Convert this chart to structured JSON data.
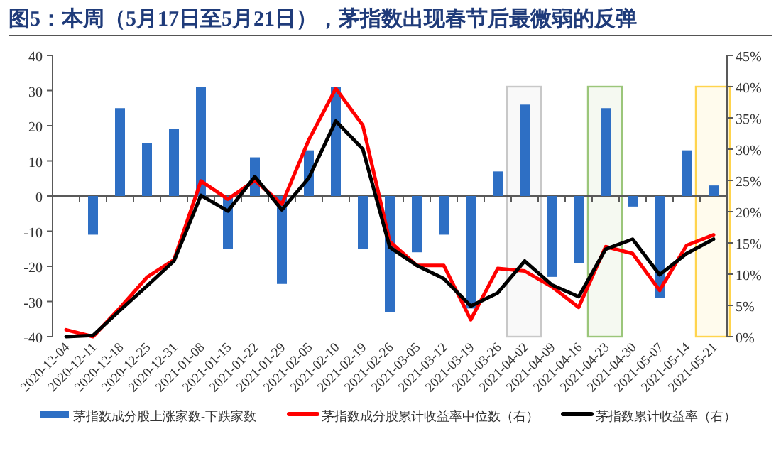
{
  "chart_data": {
    "type": "bar",
    "title": "图5：本周（5月17日至5月21日），茅指数出现春节后最微弱的反弹",
    "categories": [
      "2020-12-04",
      "2020-12-11",
      "2020-12-18",
      "2020-12-25",
      "2020-12-31",
      "2021-01-08",
      "2021-01-15",
      "2021-01-22",
      "2021-01-29",
      "2021-02-05",
      "2021-02-10",
      "2021-02-19",
      "2021-02-26",
      "2021-03-05",
      "2021-03-12",
      "2021-03-19",
      "2021-03-26",
      "2021-04-02",
      "2021-04-09",
      "2021-04-16",
      "2021-04-23",
      "2021-04-30",
      "2021-05-07",
      "2021-05-14",
      "2021-05-21"
    ],
    "series": [
      {
        "name": "茅指数成分股上涨家数-下跌家数",
        "color": "#2e6fc4",
        "values": [
          0,
          -11,
          25,
          15,
          19,
          31,
          -15,
          11,
          -25,
          13,
          31,
          -15,
          -33,
          -16,
          -11,
          -32,
          7,
          26,
          -23,
          -19,
          25,
          -3,
          -29,
          13,
          3
        ]
      },
      {
        "name": "茅指数成分股累计收益率中位数（右）",
        "type": "line",
        "axis": "y2",
        "color": "#ff0000",
        "values": [
          1.1,
          0,
          4.6,
          9.5,
          12.3,
          24.9,
          22.0,
          25.0,
          21.2,
          31.5,
          39.7,
          33.8,
          15.2,
          11.4,
          11.4,
          2.7,
          10.9,
          10.5,
          8.0,
          4.7,
          14.4,
          13.3,
          7.4,
          14.6,
          16.3
        ]
      },
      {
        "name": "茅指数累计收益率（右）",
        "type": "line",
        "axis": "y2",
        "color": "#000000",
        "values": [
          0,
          0.2,
          4.2,
          8.1,
          12.1,
          22.6,
          20.1,
          25.6,
          20.3,
          25.4,
          34.5,
          30.0,
          14.3,
          11.4,
          9.3,
          4.9,
          7.0,
          12.1,
          8.3,
          6.4,
          14.0,
          15.6,
          9.9,
          13.3,
          15.6
        ]
      }
    ],
    "ylim": [
      -40,
      40
    ],
    "yticks": [
      -40,
      -30,
      -20,
      -10,
      0,
      10,
      20,
      30,
      40
    ],
    "y2lim": [
      0,
      45
    ],
    "y2ticks": [
      {
        "value": 0,
        "label": "0%"
      },
      {
        "value": 5,
        "label": "5%"
      },
      {
        "value": 10,
        "label": "10%"
      },
      {
        "value": 15,
        "label": "15%"
      },
      {
        "value": 20,
        "label": "20%"
      },
      {
        "value": 25,
        "label": "25%"
      },
      {
        "value": 30,
        "label": "30%"
      },
      {
        "value": 35,
        "label": "35%"
      },
      {
        "value": 40,
        "label": "40%"
      },
      {
        "value": 45,
        "label": "45%"
      }
    ],
    "bands": [
      {
        "axis": "x",
        "from": "2021-04-02",
        "to": "2021-04-02",
        "color": "#c8c8c8"
      },
      {
        "axis": "x",
        "from": "2021-04-23",
        "to": "2021-04-23",
        "color": "#9bc67a"
      },
      {
        "axis": "x",
        "from": "2021-05-21",
        "to": "2021-05-21",
        "color": "#ffd44d"
      }
    ],
    "legend": "bottom"
  }
}
